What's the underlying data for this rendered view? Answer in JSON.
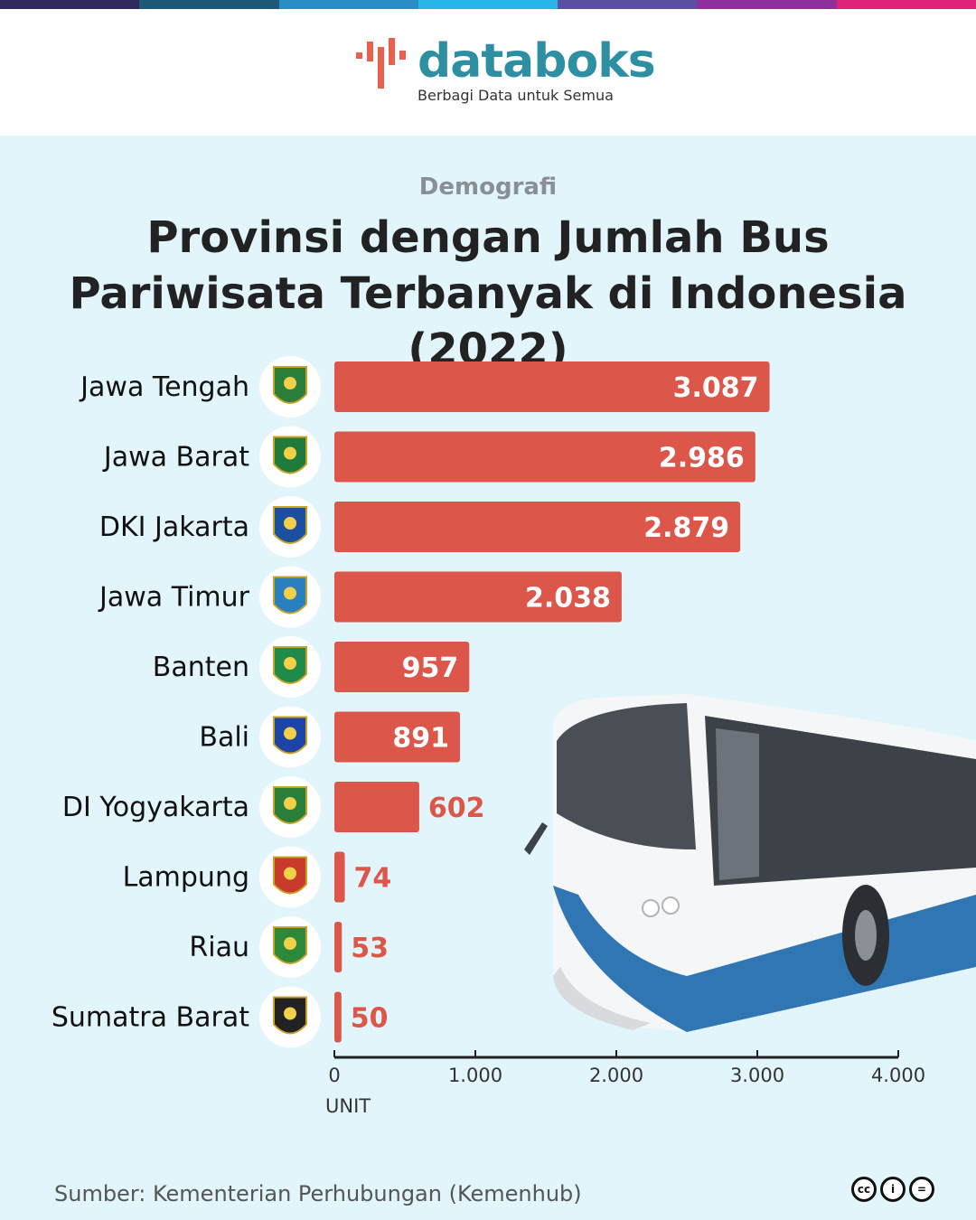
{
  "header": {
    "brand": "databoks",
    "tagline": "Berbagi Data untuk Semua",
    "stripe_colors": [
      "#2f2b5e",
      "#1e5a78",
      "#2a8ec6",
      "#29b5e8",
      "#5a4fa0",
      "#8e2f9c",
      "#e0237a"
    ]
  },
  "category": "Demografi",
  "title": "Provinsi dengan Jumlah Bus Pariwisata Terbanyak di Indonesia (2022)",
  "chart_data": {
    "type": "bar",
    "orientation": "horizontal",
    "categories": [
      "Jawa Tengah",
      "Jawa Barat",
      "DKI Jakarta",
      "Jawa Timur",
      "Banten",
      "Bali",
      "DI Yogyakarta",
      "Lampung",
      "Riau",
      "Sumatra Barat"
    ],
    "values": [
      3087,
      2986,
      2879,
      2038,
      957,
      891,
      602,
      74,
      53,
      50
    ],
    "value_labels": [
      "3.087",
      "2.986",
      "2.879",
      "2.038",
      "957",
      "891",
      "602",
      "74",
      "53",
      "50"
    ],
    "xlim": [
      0,
      4000
    ],
    "ticks": [
      0,
      1000,
      2000,
      3000,
      4000
    ],
    "tick_labels": [
      "0",
      "1.000",
      "2.000",
      "3.000",
      "4.000"
    ],
    "xlabel": "UNIT",
    "bar_color": "#dc564a",
    "grid": false,
    "legend": "none"
  },
  "footer": {
    "source": "Sumber: Kementerian Perhubungan (Kemenhub)",
    "license_icons": [
      "cc-icon",
      "attribution-icon",
      "no-derivatives-icon"
    ]
  }
}
